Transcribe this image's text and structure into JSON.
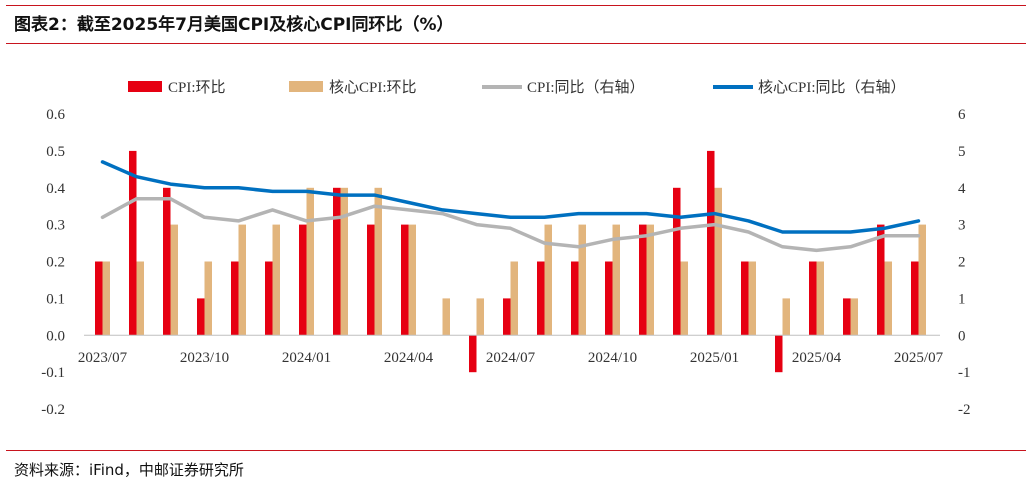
{
  "header": {
    "title": "图表2：截至2025年7月美国CPI及核心CPI同环比（%）"
  },
  "footer": {
    "source": "资料来源：iFind，中邮证券研究所"
  },
  "colors": {
    "cpi_mom": "#e60012",
    "core_mom": "#e2b57d",
    "cpi_yoy": "#b4b4b4",
    "core_yoy": "#0070c0",
    "rule": "#c8141e"
  },
  "chart_data": {
    "type": "bar",
    "legend_position": "top",
    "grid": false,
    "categories": [
      "2023/07",
      "2023/08",
      "2023/09",
      "2023/10",
      "2023/11",
      "2023/12",
      "2024/01",
      "2024/02",
      "2024/03",
      "2024/04",
      "2024/05",
      "2024/06",
      "2024/07",
      "2024/08",
      "2024/09",
      "2024/10",
      "2024/11",
      "2024/12",
      "2025/01",
      "2025/02",
      "2025/03",
      "2025/04",
      "2025/05",
      "2025/06",
      "2025/07"
    ],
    "x_tick_labels": [
      "2023/07",
      "2023/10",
      "2024/01",
      "2024/04",
      "2024/07",
      "2024/10",
      "2025/01",
      "2025/04",
      "2025/07"
    ],
    "y_left": {
      "ylim": [
        -0.2,
        0.6
      ],
      "ticks": [
        "0.6",
        "0.5",
        "0.4",
        "0.3",
        "0.2",
        "0.1",
        "0.0",
        "-0.1",
        "-0.2"
      ]
    },
    "y_right": {
      "ylim": [
        -2,
        6
      ],
      "ticks": [
        "6",
        "5",
        "4",
        "3",
        "2",
        "1",
        "0",
        "-1",
        "-2"
      ]
    },
    "series": [
      {
        "name": "CPI:环比",
        "kind": "bar",
        "axis": "left",
        "values": [
          0.2,
          0.5,
          0.4,
          0.1,
          0.2,
          0.2,
          0.3,
          0.4,
          0.3,
          0.3,
          0.0,
          -0.1,
          0.1,
          0.2,
          0.2,
          0.2,
          0.3,
          0.4,
          0.5,
          0.2,
          -0.1,
          0.2,
          0.1,
          0.3,
          0.2
        ]
      },
      {
        "name": "核心CPI:环比",
        "kind": "bar",
        "axis": "left",
        "values": [
          0.2,
          0.2,
          0.3,
          0.2,
          0.3,
          0.3,
          0.4,
          0.4,
          0.4,
          0.3,
          0.1,
          0.1,
          0.2,
          0.3,
          0.3,
          0.3,
          0.3,
          0.2,
          0.4,
          0.2,
          0.1,
          0.2,
          0.1,
          0.2,
          0.3
        ]
      },
      {
        "name": "CPI:同比（右轴）",
        "kind": "line",
        "axis": "right",
        "values": [
          3.2,
          3.7,
          3.7,
          3.2,
          3.1,
          3.4,
          3.1,
          3.2,
          3.5,
          3.4,
          3.3,
          3.0,
          2.9,
          2.5,
          2.4,
          2.6,
          2.7,
          2.9,
          3.0,
          2.8,
          2.4,
          2.3,
          2.4,
          2.7,
          2.7
        ]
      },
      {
        "name": "核心CPI:同比（右轴）",
        "kind": "line",
        "axis": "right",
        "values": [
          4.7,
          4.3,
          4.1,
          4.0,
          4.0,
          3.9,
          3.9,
          3.8,
          3.8,
          3.6,
          3.4,
          3.3,
          3.2,
          3.2,
          3.3,
          3.3,
          3.3,
          3.2,
          3.3,
          3.1,
          2.8,
          2.8,
          2.8,
          2.9,
          3.1
        ]
      }
    ]
  }
}
